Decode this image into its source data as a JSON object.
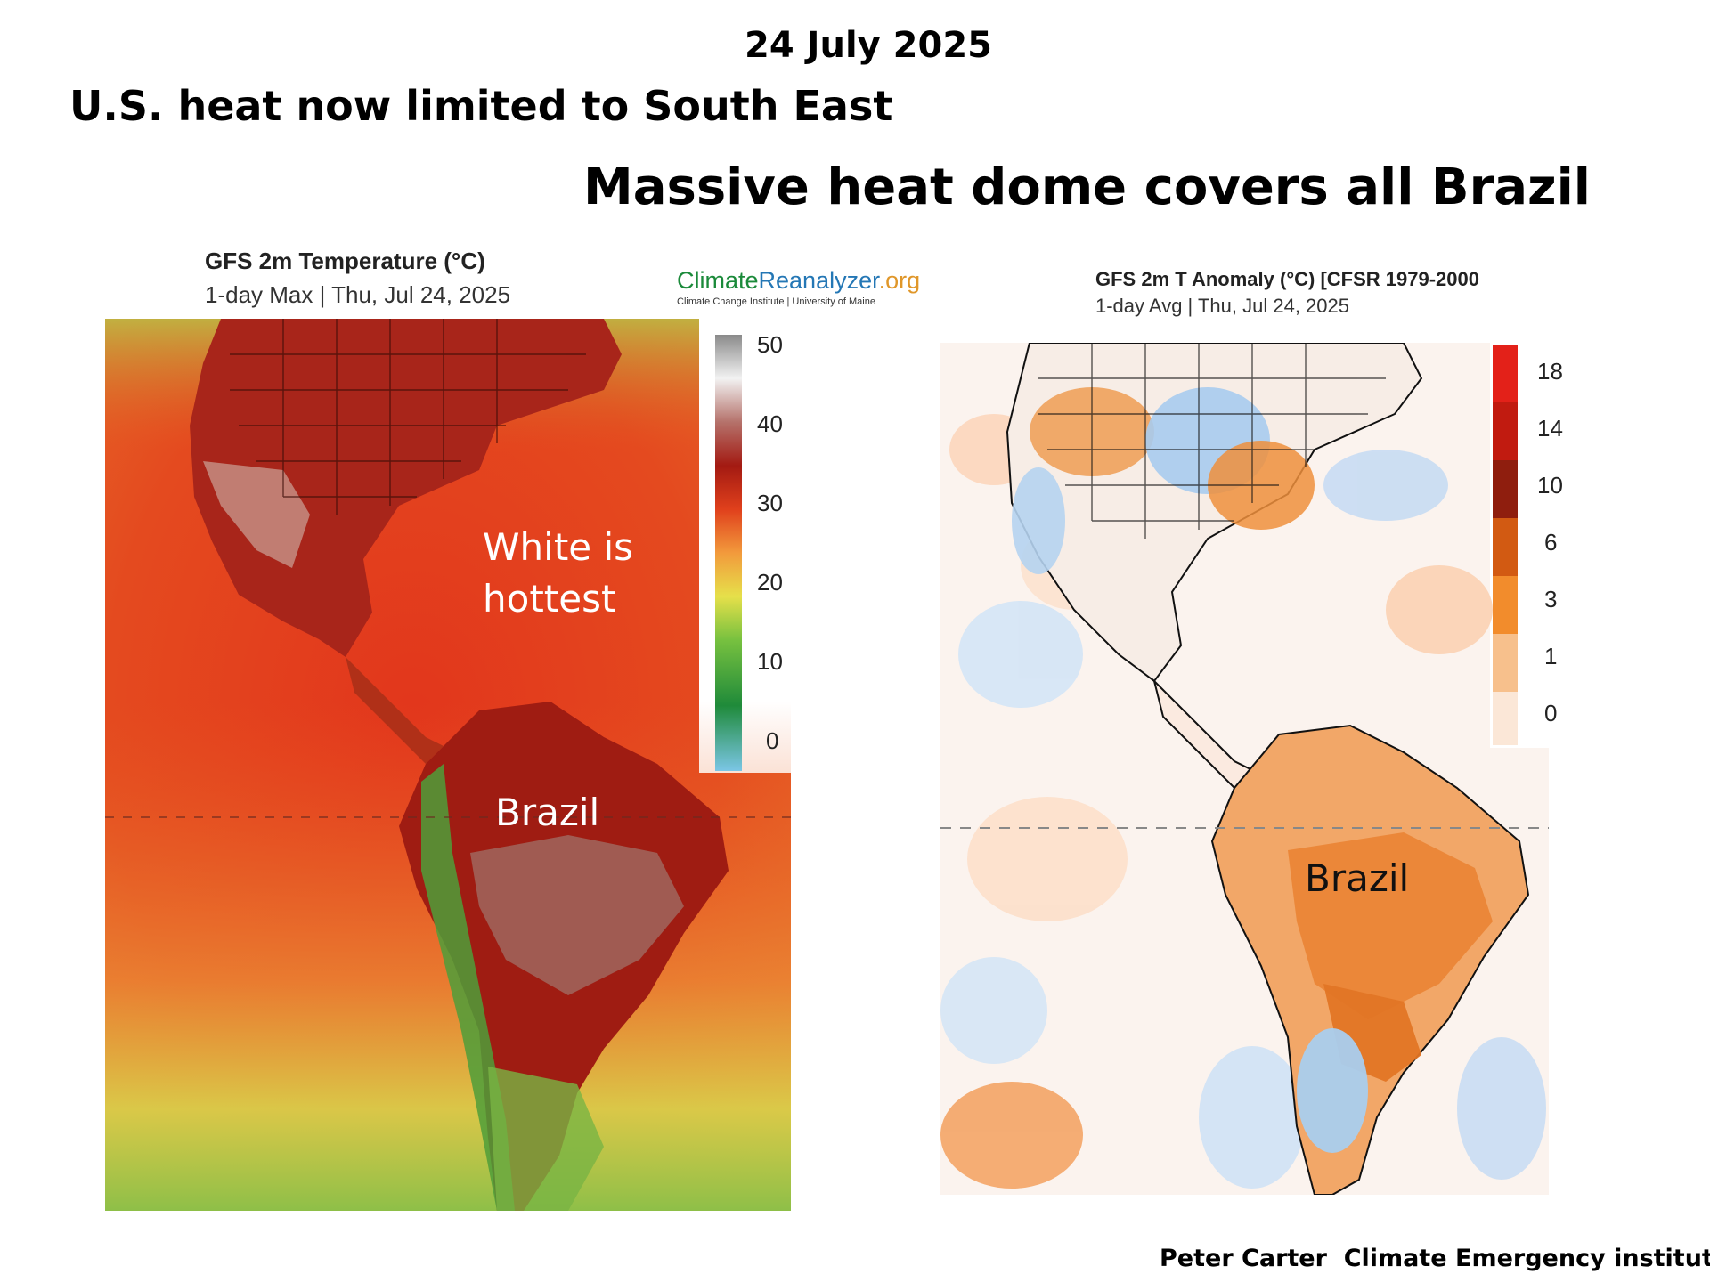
{
  "headline": {
    "date": "24 July 2025",
    "us": "U.S. heat now limited to South East",
    "brazil": "Massive heat dome covers all Brazil"
  },
  "left_map": {
    "title": "GFS 2m Temperature (°C)",
    "subtitle": "1-day Max | Thu, Jul 24, 2025",
    "logo_part1": "Climate",
    "logo_part2": "Reanalyzer",
    "logo_part3": ".org",
    "logo_sub": "Climate Change Institute | University of Maine",
    "colorbar_ticks": [
      "50",
      "40",
      "30",
      "20",
      "10",
      "0"
    ],
    "annotation_line1": "White is",
    "annotation_line2": "hottest",
    "region_label": "Brazil"
  },
  "right_map": {
    "title": "GFS 2m T Anomaly (°C) [CFSR 1979-2000",
    "subtitle": "1-day Avg | Thu, Jul 24, 2025",
    "colorbar_ticks": [
      "18",
      "14",
      "10",
      "6",
      "3",
      "1",
      "0"
    ],
    "region_label": "Brazil"
  },
  "credit": "Peter Carter  Climate Emergency institute",
  "colors": {
    "ocean_hot": "#e2361c",
    "land_hot": "#a51e12",
    "anomaly_orange": "#ef8d3c",
    "anomaly_blue": "#a9cdee"
  }
}
